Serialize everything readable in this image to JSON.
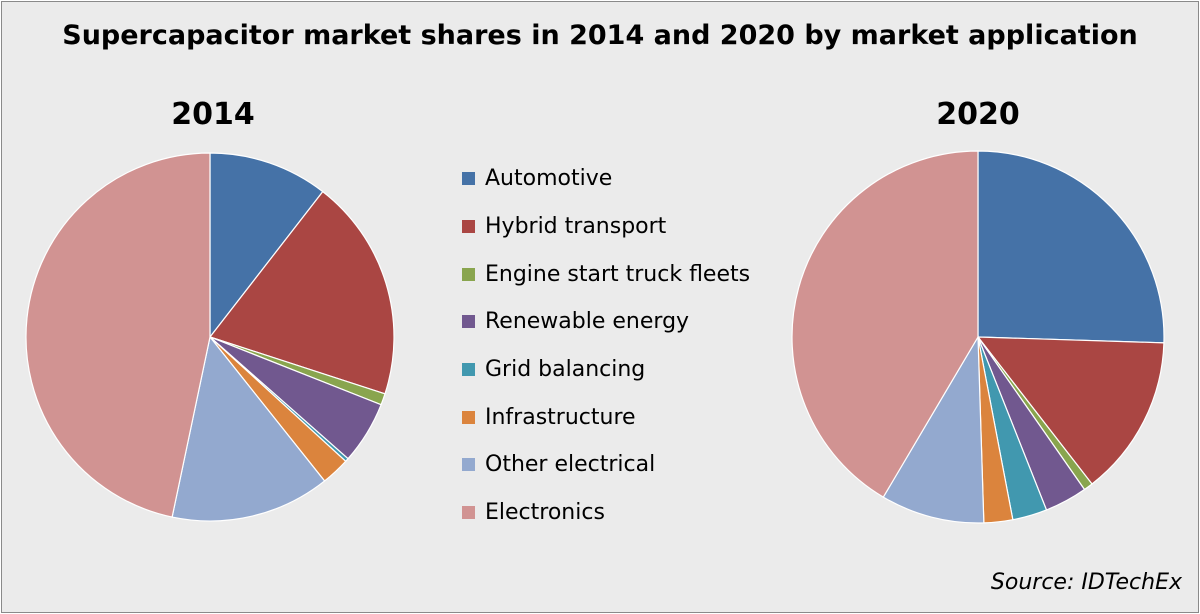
{
  "chart_data": {
    "type": "pie",
    "title": "Supercapacitor market shares in 2014 and 2020 by market application",
    "categories": [
      "Automotive",
      "Hybrid transport",
      "Engine start truck fleets",
      "Renewable energy",
      "Grid balancing",
      "Infrastructure",
      "Other electrical",
      "Electronics"
    ],
    "colors": [
      "#4572a7",
      "#aa4643",
      "#89a54e",
      "#71588f",
      "#4198af",
      "#db843d",
      "#93a9cf",
      "#d19392"
    ],
    "series": [
      {
        "name": "2014",
        "values": [
          10.5,
          19.5,
          1.0,
          5.5,
          0.3,
          2.5,
          14.0,
          46.7
        ]
      },
      {
        "name": "2020",
        "values": [
          25.5,
          14.0,
          0.8,
          3.7,
          3.0,
          2.5,
          9.0,
          41.5
        ]
      }
    ],
    "legend_position": "center",
    "source": "Source: IDTechEx"
  }
}
